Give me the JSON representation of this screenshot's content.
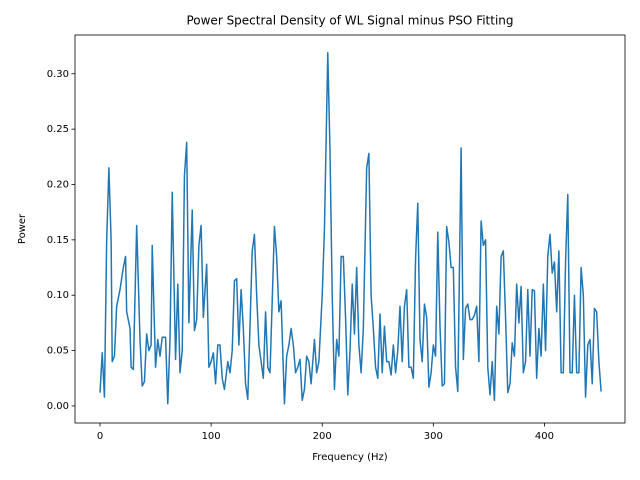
{
  "chart_data": {
    "type": "line",
    "title": "Power Spectral Density of WL Signal minus PSO Fitting",
    "x_label": "Frequency (Hz)",
    "y_label": "Power",
    "color": "#1f77b4",
    "xlim": [
      -22.5,
      472.5
    ],
    "ylim": [
      -0.0154,
      0.335
    ],
    "xticks": [
      0,
      100,
      200,
      300,
      400
    ],
    "yticks": [
      {
        "value": 0,
        "label": "0.00"
      },
      {
        "value": 0.05,
        "label": "0.05"
      },
      {
        "value": 0.1,
        "label": "0.10"
      },
      {
        "value": 0.15,
        "label": "0.15"
      },
      {
        "value": 0.2,
        "label": "0.20"
      },
      {
        "value": 0.25,
        "label": "0.25"
      },
      {
        "value": 0.3,
        "label": "0.30"
      }
    ],
    "x": [
      0,
      2,
      4,
      6,
      8,
      10,
      11,
      13,
      15,
      18,
      21,
      23,
      24,
      27,
      28,
      30,
      33,
      36,
      38,
      40,
      42,
      44,
      46,
      47,
      50,
      52,
      54,
      56,
      59,
      61,
      63,
      65,
      68,
      70,
      72,
      74,
      76,
      78,
      80,
      83,
      85,
      87,
      89,
      91,
      93,
      96,
      98,
      100,
      102,
      104,
      106,
      108,
      110,
      112,
      115,
      117,
      119,
      121,
      123,
      125,
      127,
      129,
      131,
      133,
      135,
      137,
      139,
      141,
      143,
      145,
      147,
      149,
      151,
      153,
      155,
      157,
      159,
      161,
      163,
      166,
      168,
      170,
      172,
      174,
      176,
      178,
      180,
      182,
      184,
      186,
      188,
      190,
      193,
      195,
      197,
      200,
      202,
      205,
      207,
      209,
      211,
      213,
      215,
      217,
      219,
      221,
      223,
      225,
      227,
      229,
      231,
      233,
      235,
      237,
      240,
      242,
      244,
      246,
      248,
      250,
      252,
      254,
      256,
      258,
      260,
      262,
      264,
      266,
      268,
      270,
      272,
      274,
      276,
      278,
      280,
      282,
      284,
      286,
      288,
      290,
      292,
      294,
      296,
      298,
      300,
      302,
      304,
      306,
      308,
      310,
      312,
      314,
      316,
      318,
      320,
      322,
      325,
      327,
      329,
      331,
      333,
      335,
      337,
      339,
      341,
      343,
      345,
      347,
      349,
      351,
      353,
      355,
      357,
      359,
      361,
      363,
      365,
      367,
      369,
      371,
      373,
      375,
      377,
      379,
      381,
      383,
      385,
      387,
      389,
      391,
      393,
      395,
      397,
      399,
      401,
      403,
      405,
      407,
      409,
      411,
      413,
      415,
      417,
      419,
      421,
      423,
      425,
      427,
      429,
      431,
      433,
      435,
      437,
      439,
      441,
      443,
      445,
      447,
      449,
      451
    ],
    "values": [
      0.012,
      0.048,
      0.008,
      0.15,
      0.215,
      0.15,
      0.04,
      0.045,
      0.09,
      0.105,
      0.125,
      0.135,
      0.085,
      0.07,
      0.035,
      0.033,
      0.163,
      0.06,
      0.018,
      0.022,
      0.065,
      0.05,
      0.055,
      0.145,
      0.035,
      0.06,
      0.045,
      0.062,
      0.062,
      0.002,
      0.06,
      0.193,
      0.042,
      0.11,
      0.03,
      0.05,
      0.208,
      0.238,
      0.075,
      0.177,
      0.068,
      0.078,
      0.145,
      0.163,
      0.08,
      0.128,
      0.035,
      0.04,
      0.048,
      0.02,
      0.055,
      0.055,
      0.025,
      0.015,
      0.04,
      0.03,
      0.05,
      0.113,
      0.115,
      0.055,
      0.105,
      0.07,
      0.02,
      0.006,
      0.072,
      0.14,
      0.155,
      0.1,
      0.055,
      0.04,
      0.025,
      0.085,
      0.035,
      0.03,
      0.095,
      0.162,
      0.135,
      0.085,
      0.095,
      0.002,
      0.045,
      0.055,
      0.07,
      0.055,
      0.03,
      0.035,
      0.042,
      0.005,
      0.015,
      0.045,
      0.04,
      0.02,
      0.06,
      0.03,
      0.04,
      0.1,
      0.16,
      0.319,
      0.23,
      0.1,
      0.015,
      0.06,
      0.045,
      0.135,
      0.135,
      0.08,
      0.01,
      0.05,
      0.11,
      0.065,
      0.125,
      0.055,
      0.03,
      0.07,
      0.215,
      0.228,
      0.1,
      0.07,
      0.035,
      0.025,
      0.083,
      0.03,
      0.072,
      0.04,
      0.04,
      0.028,
      0.055,
      0.03,
      0.05,
      0.09,
      0.04,
      0.09,
      0.105,
      0.035,
      0.035,
      0.025,
      0.133,
      0.183,
      0.06,
      0.04,
      0.092,
      0.08,
      0.017,
      0.03,
      0.055,
      0.045,
      0.157,
      0.072,
      0.018,
      0.02,
      0.162,
      0.148,
      0.125,
      0.125,
      0.035,
      0.013,
      0.233,
      0.042,
      0.088,
      0.092,
      0.078,
      0.078,
      0.082,
      0.09,
      0.04,
      0.167,
      0.145,
      0.15,
      0.035,
      0.01,
      0.04,
      0.005,
      0.09,
      0.065,
      0.135,
      0.14,
      0.08,
      0.012,
      0.02,
      0.057,
      0.045,
      0.11,
      0.075,
      0.108,
      0.03,
      0.04,
      0.105,
      0.045,
      0.105,
      0.104,
      0.025,
      0.07,
      0.045,
      0.11,
      0.05,
      0.135,
      0.155,
      0.12,
      0.13,
      0.085,
      0.14,
      0.03,
      0.03,
      0.13,
      0.191,
      0.03,
      0.03,
      0.1,
      0.03,
      0.03,
      0.125,
      0.1,
      0.008,
      0.055,
      0.06,
      0.02,
      0.088,
      0.085,
      0.04,
      0.013
    ]
  }
}
